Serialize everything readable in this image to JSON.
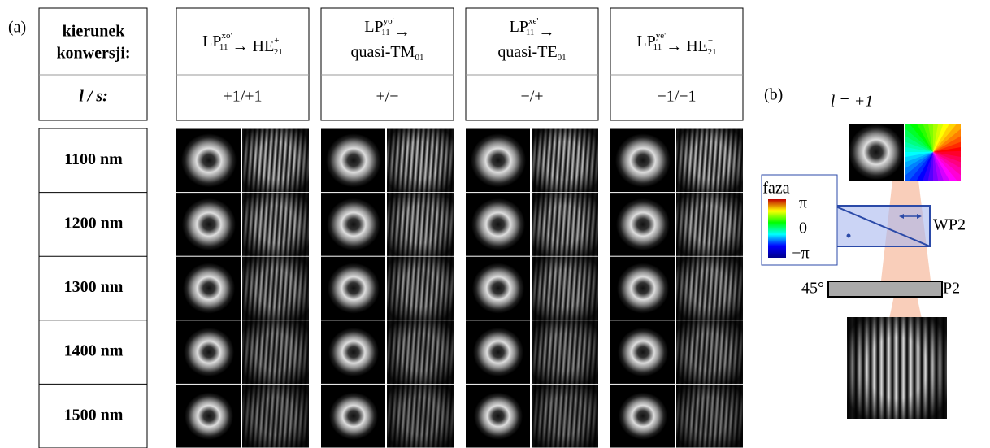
{
  "panel_a": {
    "label": "(a)",
    "corner_lines": [
      "kierunek",
      "konwersji:"
    ],
    "ls_label": "l / s:",
    "columns": [
      {
        "lines": [
          [
            {
              "text": "LP",
              "sup": "xo'",
              "sub": "11"
            },
            {
              "text": " → "
            },
            {
              "text": "HE",
              "sup": "+",
              "sub": "21"
            }
          ]
        ],
        "ls": "+1/+1"
      },
      {
        "lines": [
          [
            {
              "text": "LP",
              "sup": "yo'",
              "sub": "11"
            },
            {
              "text": " →"
            }
          ],
          [
            {
              "text": "quasi-TM",
              "sub": "01"
            }
          ]
        ],
        "ls": "+/−"
      },
      {
        "lines": [
          [
            {
              "text": "LP",
              "sup": "xe'",
              "sub": "11"
            },
            {
              "text": " →"
            }
          ],
          [
            {
              "text": "quasi-TE",
              "sub": "01"
            }
          ]
        ],
        "ls": "−/+"
      },
      {
        "lines": [
          [
            {
              "text": "LP",
              "sup": "ye'",
              "sub": "11"
            },
            {
              "text": " → "
            },
            {
              "text": "HE",
              "sup": "−",
              "sub": "21"
            }
          ]
        ],
        "ls": "−1/−1"
      }
    ],
    "wavelengths": [
      "1100 nm",
      "1200 nm",
      "1300 nm",
      "1400 nm",
      "1500 nm"
    ]
  },
  "panel_b": {
    "label": "(b)",
    "topological_charge": "l = +1",
    "legend": {
      "title": "faza",
      "top": "π",
      "middle": "0",
      "bottom": "−π"
    },
    "plate_label": "WP2",
    "angle_label": "45°",
    "polarizer_label": "P2"
  }
}
